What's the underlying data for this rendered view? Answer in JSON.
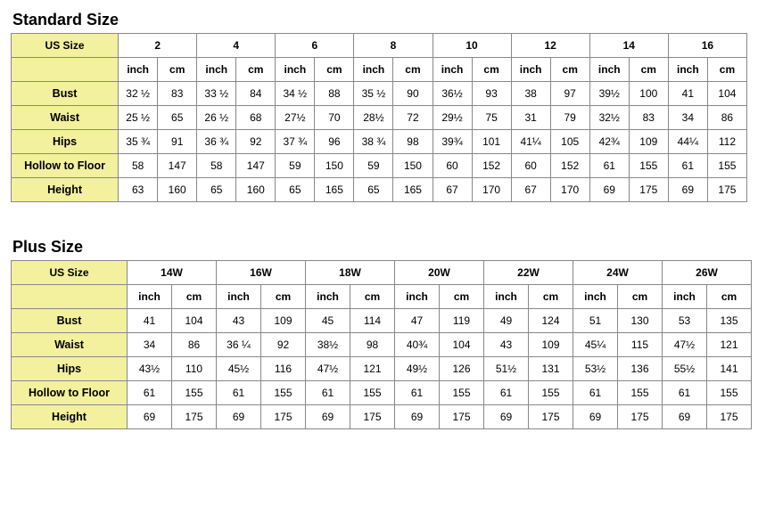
{
  "standard": {
    "title": "Standard Size",
    "us_label": "US Size",
    "unit_inch": "inch",
    "unit_cm": "cm",
    "sizes": [
      "2",
      "4",
      "6",
      "8",
      "10",
      "12",
      "14",
      "16"
    ],
    "rows": [
      {
        "label": "Bust",
        "values": [
          "32 ½",
          "83",
          "33 ½",
          "84",
          "34 ½",
          "88",
          "35 ½",
          "90",
          "36½",
          "93",
          "38",
          "97",
          "39½",
          "100",
          "41",
          "104"
        ]
      },
      {
        "label": "Waist",
        "values": [
          "25 ½",
          "65",
          "26 ½",
          "68",
          "27½",
          "70",
          "28½",
          "72",
          "29½",
          "75",
          "31",
          "79",
          "32½",
          "83",
          "34",
          "86"
        ]
      },
      {
        "label": "Hips",
        "values": [
          "35 ¾",
          "91",
          "36 ¾",
          "92",
          "37 ¾",
          "96",
          "38 ¾",
          "98",
          "39¾",
          "101",
          "41¼",
          "105",
          "42¾",
          "109",
          "44¼",
          "112"
        ]
      },
      {
        "label": "Hollow to Floor",
        "values": [
          "58",
          "147",
          "58",
          "147",
          "59",
          "150",
          "59",
          "150",
          "60",
          "152",
          "60",
          "152",
          "61",
          "155",
          "61",
          "155"
        ]
      },
      {
        "label": "Height",
        "values": [
          "63",
          "160",
          "65",
          "160",
          "65",
          "165",
          "65",
          "165",
          "67",
          "170",
          "67",
          "170",
          "69",
          "175",
          "69",
          "175"
        ]
      }
    ]
  },
  "plus": {
    "title": "Plus Size",
    "us_label": "US Size",
    "unit_inch": "inch",
    "unit_cm": "cm",
    "sizes": [
      "14W",
      "16W",
      "18W",
      "20W",
      "22W",
      "24W",
      "26W"
    ],
    "rows": [
      {
        "label": "Bust",
        "values": [
          "41",
          "104",
          "43",
          "109",
          "45",
          "114",
          "47",
          "119",
          "49",
          "124",
          "51",
          "130",
          "53",
          "135"
        ]
      },
      {
        "label": "Waist",
        "values": [
          "34",
          "86",
          "36 ¼",
          "92",
          "38½",
          "98",
          "40¾",
          "104",
          "43",
          "109",
          "45¼",
          "115",
          "47½",
          "121"
        ]
      },
      {
        "label": "Hips",
        "values": [
          "43½",
          "110",
          "45½",
          "116",
          "47½",
          "121",
          "49½",
          "126",
          "51½",
          "131",
          "53½",
          "136",
          "55½",
          "141"
        ]
      },
      {
        "label": "Hollow to Floor",
        "values": [
          "61",
          "155",
          "61",
          "155",
          "61",
          "155",
          "61",
          "155",
          "61",
          "155",
          "61",
          "155",
          "61",
          "155"
        ]
      },
      {
        "label": "Height",
        "values": [
          "69",
          "175",
          "69",
          "175",
          "69",
          "175",
          "69",
          "175",
          "69",
          "175",
          "69",
          "175",
          "69",
          "175"
        ]
      }
    ]
  }
}
